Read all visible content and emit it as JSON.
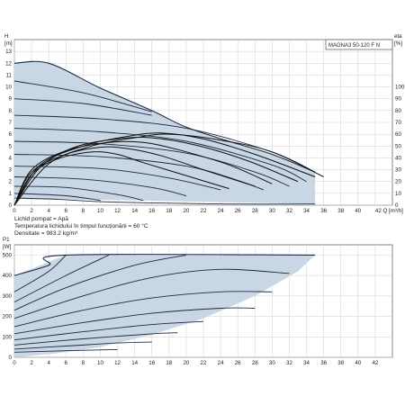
{
  "model": "MAGNA3 50-120 F N",
  "notes": [
    "Lichid pompat = Apă",
    "Temperatura lichidului în timpul funcționării = 60 °C",
    "Densitate = 983.2 kg/m³"
  ],
  "chart_data": [
    {
      "type": "line",
      "title": "MAGNA3 50-120 F N",
      "xlabel": "Q [m³/h]",
      "ylabel": "H [m]",
      "y2label": "eta [%]",
      "xlim": [
        0,
        44
      ],
      "ylim": [
        0,
        14
      ],
      "y2lim": [
        0,
        140
      ],
      "x_ticks": [
        0,
        2,
        4,
        6,
        8,
        10,
        12,
        14,
        16,
        18,
        20,
        22,
        24,
        26,
        28,
        30,
        32,
        34,
        36,
        38,
        40,
        42
      ],
      "x_tick_labels": [
        "0",
        "2",
        "4",
        "6",
        "8",
        "10",
        "12",
        "14",
        "16",
        "18",
        "20",
        "22",
        "24",
        "26",
        "28",
        "30",
        "32",
        "34",
        "36",
        "38",
        "40",
        "42 Q [m³/h]"
      ],
      "y_ticks": [
        0,
        1,
        2,
        3,
        4,
        5,
        6,
        7,
        8,
        9,
        10,
        11,
        12,
        13
      ],
      "y2_ticks": [
        0,
        10,
        20,
        30,
        40,
        50,
        60,
        70,
        80,
        90,
        100
      ],
      "max_curve": [
        [
          0,
          12.0
        ],
        [
          4,
          12.0
        ],
        [
          10,
          9.9
        ],
        [
          16,
          8.0
        ],
        [
          20,
          6.6
        ],
        [
          25,
          5.4
        ],
        [
          30,
          4.3
        ],
        [
          35,
          2.8
        ]
      ],
      "head_curves": [
        {
          "shutoff": 10.5,
          "points": [
            [
              0,
              10.5
            ],
            [
              8,
              9.5
            ],
            [
              16,
              7.9
            ]
          ]
        },
        {
          "shutoff": 9.0,
          "points": [
            [
              0,
              9.0
            ],
            [
              8,
              8.6
            ],
            [
              16,
              7.6
            ]
          ]
        },
        {
          "shutoff": 7.6,
          "points": [
            [
              0,
              7.6
            ],
            [
              10,
              7.3
            ],
            [
              20,
              6.5
            ],
            [
              30,
              4.5
            ],
            [
              35,
              2.8
            ]
          ]
        },
        {
          "shutoff": 6.5,
          "points": [
            [
              0,
              6.5
            ],
            [
              10,
              6.2
            ],
            [
              20,
              5.4
            ],
            [
              30,
              3.4
            ],
            [
              34,
              2.0
            ]
          ]
        },
        {
          "shutoff": 5.4,
          "points": [
            [
              0,
              5.4
            ],
            [
              10,
              5.2
            ],
            [
              20,
              4.4
            ],
            [
              28,
              2.8
            ],
            [
              32,
              1.6
            ]
          ]
        },
        {
          "shutoff": 4.3,
          "points": [
            [
              0,
              4.3
            ],
            [
              10,
              4.1
            ],
            [
              20,
              3.3
            ],
            [
              26,
              2.1
            ],
            [
              29,
              1.3
            ]
          ]
        },
        {
          "shutoff": 3.3,
          "points": [
            [
              0,
              3.3
            ],
            [
              10,
              3.1
            ],
            [
              18,
              2.3
            ],
            [
              24,
              1.3
            ]
          ]
        },
        {
          "shutoff": 2.4,
          "points": [
            [
              0,
              2.4
            ],
            [
              8,
              2.2
            ],
            [
              16,
              1.5
            ],
            [
              20,
              0.8
            ]
          ]
        },
        {
          "shutoff": 1.6,
          "points": [
            [
              0,
              1.6
            ],
            [
              6,
              1.5
            ],
            [
              12,
              0.9
            ],
            [
              15,
              0.4
            ]
          ]
        },
        {
          "shutoff": 1.0,
          "points": [
            [
              0,
              1.0
            ],
            [
              6,
              0.8
            ],
            [
              10,
              0.4
            ]
          ]
        }
      ],
      "min_curve": [
        [
          0,
          0.6
        ],
        [
          5,
          0.5
        ],
        [
          10,
          0.3
        ],
        [
          16,
          0.2
        ],
        [
          25,
          0.1
        ],
        [
          35,
          0.1
        ]
      ],
      "efficiency_curves": [
        {
          "points": [
            [
              0,
              0
            ],
            [
              4,
              35
            ],
            [
              9,
              50
            ],
            [
              14,
              57
            ],
            [
              18,
              60
            ],
            [
              24,
              55
            ],
            [
              30,
              45
            ],
            [
              36,
              24
            ]
          ]
        },
        {
          "points": [
            [
              0,
              0
            ],
            [
              3,
              34
            ],
            [
              8,
              50
            ],
            [
              13,
              58
            ],
            [
              17,
              61
            ],
            [
              22,
              56
            ],
            [
              28,
              43
            ],
            [
              35,
              24
            ]
          ]
        },
        {
          "points": [
            [
              0,
              0
            ],
            [
              3,
              32
            ],
            [
              7,
              49
            ],
            [
              12,
              56
            ],
            [
              16,
              57
            ],
            [
              21,
              51
            ],
            [
              27,
              38
            ],
            [
              33,
              20
            ]
          ]
        },
        {
          "points": [
            [
              0,
              0
            ],
            [
              2,
              30
            ],
            [
              6,
              46
            ],
            [
              11,
              53
            ],
            [
              15,
              53
            ],
            [
              19,
              47
            ],
            [
              25,
              34
            ],
            [
              30,
              18
            ]
          ]
        },
        {
          "points": [
            [
              0,
              0
            ],
            [
              2,
              28
            ],
            [
              6,
              43
            ],
            [
              10,
              49
            ],
            [
              13,
              48
            ],
            [
              17,
              42
            ],
            [
              22,
              30
            ],
            [
              28,
              16
            ]
          ]
        },
        {
          "points": [
            [
              0,
              0
            ],
            [
              2,
              26
            ],
            [
              5,
              39
            ],
            [
              9,
              45
            ],
            [
              12,
              43
            ],
            [
              15,
              36
            ],
            [
              20,
              25
            ],
            [
              25,
              14
            ]
          ]
        }
      ]
    },
    {
      "type": "line",
      "xlabel": "",
      "ylabel": "P1 [W]",
      "xlim": [
        0,
        44
      ],
      "ylim": [
        0,
        550
      ],
      "x_ticks": [
        0,
        2,
        4,
        6,
        8,
        10,
        12,
        14,
        16,
        18,
        20,
        22,
        24,
        26,
        28,
        30,
        32,
        34,
        36,
        38,
        40,
        42
      ],
      "y_ticks": [
        0,
        100,
        200,
        300,
        400,
        500
      ],
      "max_curve": [
        [
          0,
          400
        ],
        [
          4,
          450
        ],
        [
          6,
          500
        ],
        [
          35,
          500
        ]
      ],
      "power_curves": [
        {
          "points": [
            [
              0,
              320
            ],
            [
              4,
              420
            ],
            [
              6,
              500
            ]
          ]
        },
        {
          "points": [
            [
              0,
              270
            ],
            [
              6,
              400
            ],
            [
              11,
              500
            ]
          ]
        },
        {
          "points": [
            [
              0,
              230
            ],
            [
              6,
              340
            ],
            [
              14,
              450
            ],
            [
              20,
              500
            ]
          ]
        },
        {
          "points": [
            [
              0,
              190
            ],
            [
              8,
              300
            ],
            [
              16,
              390
            ],
            [
              24,
              430
            ],
            [
              32,
              410
            ]
          ]
        },
        {
          "points": [
            [
              0,
              150
            ],
            [
              8,
              230
            ],
            [
              16,
              290
            ],
            [
              24,
              320
            ],
            [
              30,
              320
            ]
          ]
        },
        {
          "points": [
            [
              0,
              115
            ],
            [
              8,
              170
            ],
            [
              16,
              215
            ],
            [
              24,
              240
            ],
            [
              28,
              240
            ]
          ]
        },
        {
          "points": [
            [
              0,
              85
            ],
            [
              8,
              125
            ],
            [
              16,
              160
            ],
            [
              22,
              175
            ]
          ]
        },
        {
          "points": [
            [
              0,
              60
            ],
            [
              8,
              90
            ],
            [
              16,
              115
            ],
            [
              19,
              120
            ]
          ]
        },
        {
          "points": [
            [
              0,
              40
            ],
            [
              6,
              55
            ],
            [
              12,
              70
            ],
            [
              16,
              75
            ]
          ]
        },
        {
          "points": [
            [
              0,
              25
            ],
            [
              6,
              32
            ],
            [
              12,
              38
            ]
          ]
        }
      ],
      "envelope": [
        [
          0,
          0
        ],
        [
          0,
          400
        ],
        [
          6,
          500
        ],
        [
          35,
          500
        ],
        [
          33,
          420
        ],
        [
          28,
          300
        ],
        [
          22,
          190
        ],
        [
          16,
          110
        ],
        [
          10,
          50
        ],
        [
          5,
          20
        ]
      ]
    }
  ]
}
